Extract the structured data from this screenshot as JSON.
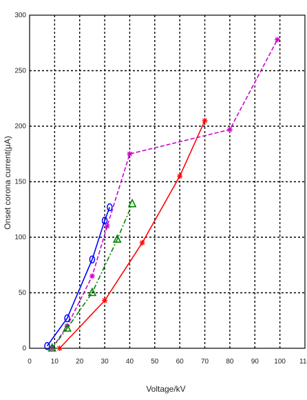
{
  "chart_data": {
    "type": "line",
    "xlabel": "Voltage/kV",
    "ylabel": "Onset corona current(μA)",
    "xlim": [
      0,
      110
    ],
    "ylim": [
      0,
      300
    ],
    "xticks": [
      0,
      10,
      20,
      30,
      40,
      50,
      60,
      70,
      80,
      90,
      100,
      110
    ],
    "yticks": [
      0,
      50,
      100,
      150,
      200,
      250,
      300
    ],
    "grid": true,
    "legend": "none",
    "series": [
      {
        "color": "#0000ff",
        "marker": "circle",
        "line": "solid",
        "x": [
          7,
          15,
          25,
          30,
          32
        ],
        "y": [
          2,
          27,
          80,
          115,
          127
        ]
      },
      {
        "color": "#cc00cc",
        "marker": "star",
        "line": "dashed",
        "x": [
          9,
          15,
          25,
          31,
          40,
          80,
          99
        ],
        "y": [
          0,
          20,
          65,
          110,
          175,
          197,
          278
        ]
      },
      {
        "color": "#008000",
        "marker": "triangle",
        "line": "dashdot",
        "x": [
          9,
          15,
          25,
          35,
          41
        ],
        "y": [
          0,
          18,
          50,
          98,
          130
        ]
      },
      {
        "color": "#ff0000",
        "marker": "star",
        "line": "solid",
        "x": [
          12,
          30,
          45,
          60,
          70
        ],
        "y": [
          0,
          43,
          95,
          155,
          205
        ]
      }
    ]
  }
}
